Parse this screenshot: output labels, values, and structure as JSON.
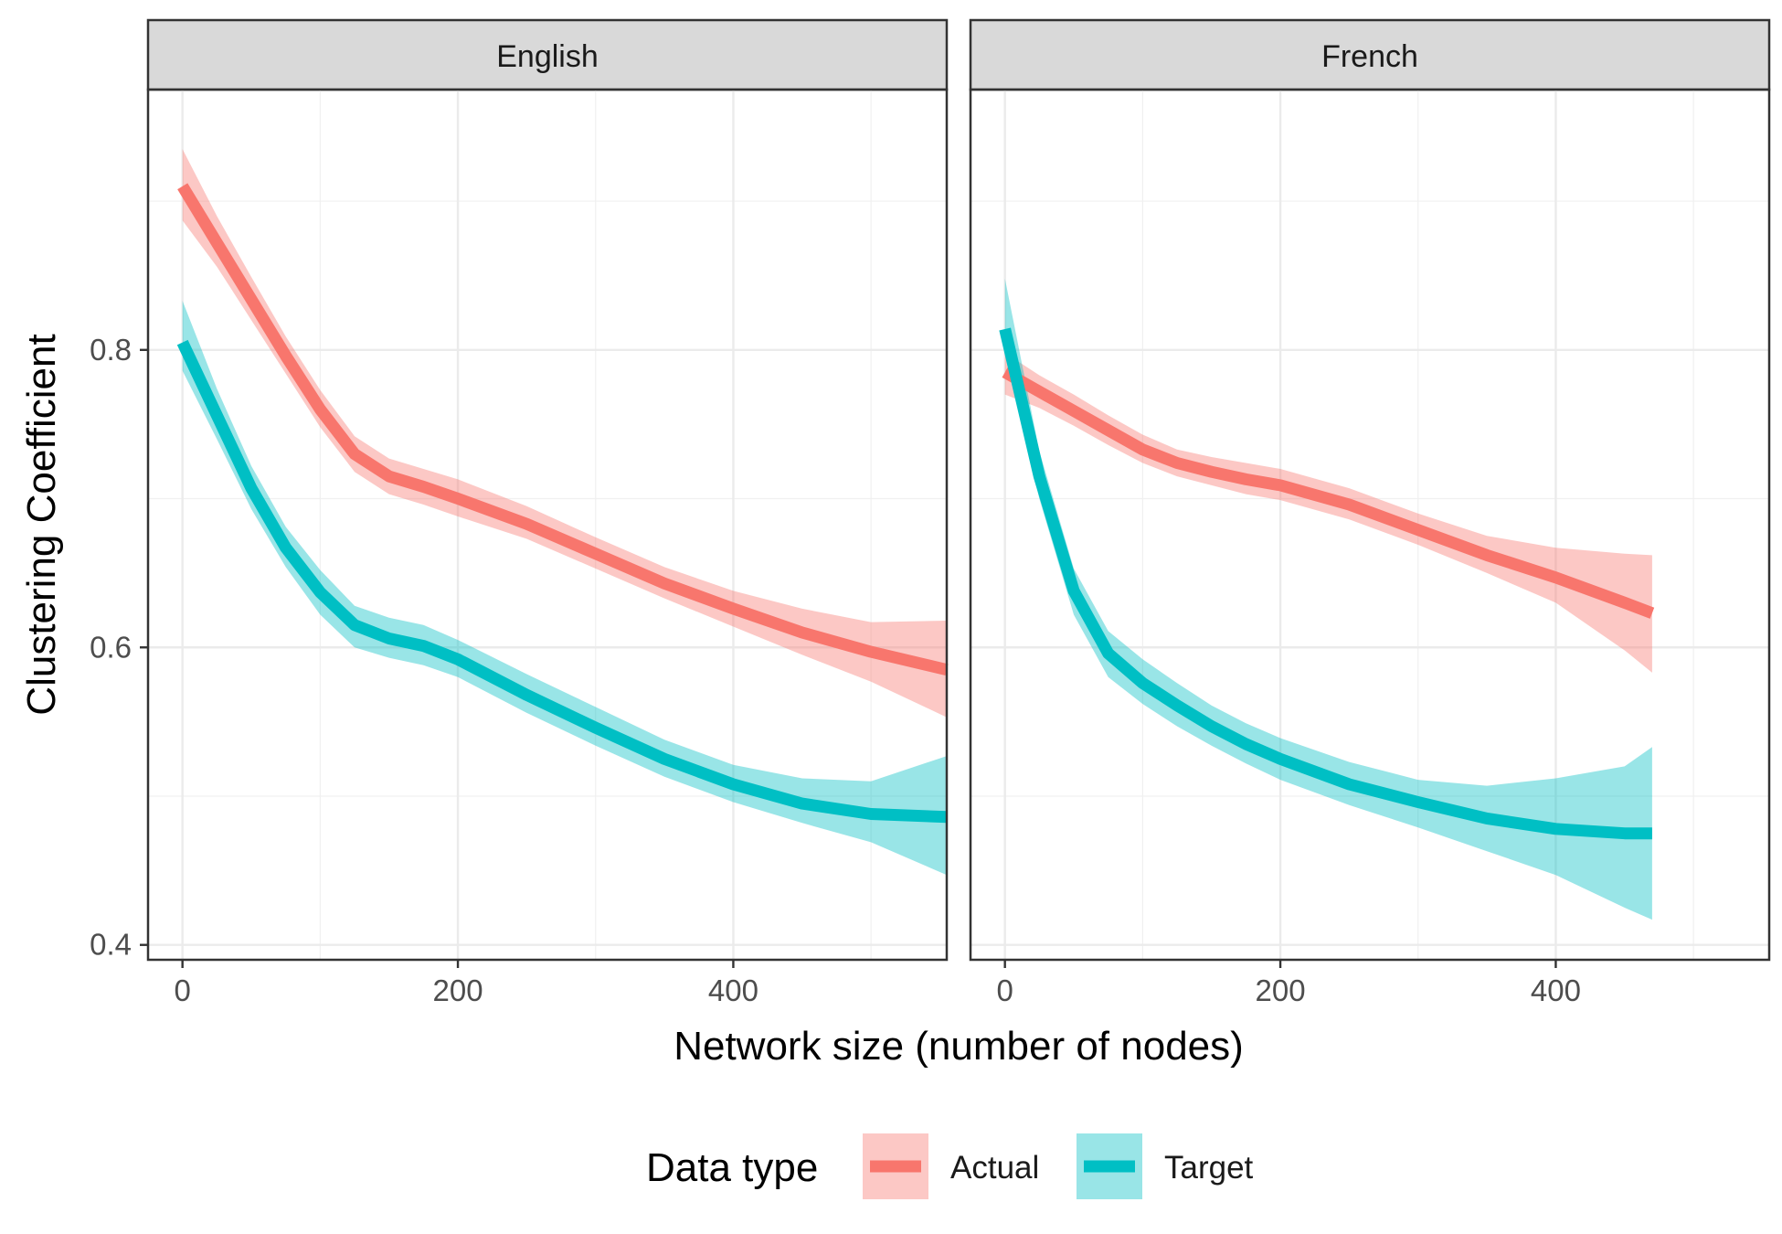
{
  "chart_data": {
    "type": "line",
    "xlabel": "Network size (number of nodes)",
    "ylabel": "Clustering Coefficient",
    "xlim": [
      -25,
      555
    ],
    "ylim": [
      0.39,
      0.975
    ],
    "x_ticks": [
      0,
      200,
      400
    ],
    "y_ticks": [
      0.4,
      0.6,
      0.8
    ],
    "grid": true,
    "legend": {
      "title": "Data type",
      "position": "bottom",
      "entries": [
        "Actual",
        "Target"
      ]
    },
    "colors": {
      "Actual": "#F8766D",
      "Target": "#00BFC4"
    },
    "panels": [
      {
        "title": "English",
        "series": [
          {
            "name": "Actual",
            "x": [
              0,
              25,
              50,
              75,
              100,
              125,
              150,
              175,
              200,
              250,
              300,
              350,
              400,
              450,
              500,
              555
            ],
            "y": [
              0.91,
              0.872,
              0.834,
              0.796,
              0.76,
              0.73,
              0.715,
              0.708,
              0.7,
              0.683,
              0.663,
              0.643,
              0.626,
              0.61,
              0.597,
              0.585
            ],
            "lower": [
              0.887,
              0.856,
              0.82,
              0.784,
              0.748,
              0.718,
              0.703,
              0.696,
              0.688,
              0.673,
              0.653,
              0.633,
              0.614,
              0.595,
              0.577,
              0.553
            ],
            "upper": [
              0.935,
              0.89,
              0.849,
              0.809,
              0.773,
              0.742,
              0.727,
              0.72,
              0.713,
              0.695,
              0.674,
              0.654,
              0.638,
              0.626,
              0.617,
              0.618
            ]
          },
          {
            "name": "Target",
            "x": [
              0,
              25,
              50,
              75,
              100,
              125,
              150,
              175,
              200,
              250,
              300,
              350,
              400,
              450,
              500,
              555
            ],
            "y": [
              0.805,
              0.756,
              0.707,
              0.667,
              0.637,
              0.615,
              0.606,
              0.601,
              0.592,
              0.568,
              0.546,
              0.525,
              0.508,
              0.495,
              0.488,
              0.486
            ],
            "lower": [
              0.786,
              0.74,
              0.693,
              0.654,
              0.622,
              0.6,
              0.593,
              0.588,
              0.58,
              0.556,
              0.534,
              0.513,
              0.496,
              0.482,
              0.469,
              0.447
            ],
            "upper": [
              0.833,
              0.774,
              0.722,
              0.681,
              0.652,
              0.628,
              0.62,
              0.615,
              0.605,
              0.582,
              0.56,
              0.538,
              0.521,
              0.512,
              0.51,
              0.527
            ]
          }
        ]
      },
      {
        "title": "French",
        "series": [
          {
            "name": "Actual",
            "x": [
              0,
              25,
              50,
              75,
              100,
              125,
              150,
              175,
              200,
              250,
              300,
              350,
              400,
              450,
              470
            ],
            "y": [
              0.785,
              0.772,
              0.759,
              0.746,
              0.733,
              0.724,
              0.718,
              0.713,
              0.709,
              0.696,
              0.679,
              0.662,
              0.647,
              0.63,
              0.623
            ],
            "lower": [
              0.77,
              0.761,
              0.749,
              0.736,
              0.724,
              0.715,
              0.709,
              0.703,
              0.699,
              0.686,
              0.669,
              0.65,
              0.63,
              0.598,
              0.583
            ],
            "upper": [
              0.798,
              0.783,
              0.77,
              0.756,
              0.743,
              0.733,
              0.728,
              0.724,
              0.72,
              0.707,
              0.69,
              0.675,
              0.667,
              0.663,
              0.662
            ]
          },
          {
            "name": "Target",
            "x": [
              0,
              25,
              50,
              75,
              100,
              125,
              150,
              175,
              200,
              250,
              300,
              350,
              400,
              450,
              470
            ],
            "y": [
              0.814,
              0.715,
              0.638,
              0.596,
              0.576,
              0.561,
              0.547,
              0.535,
              0.525,
              0.508,
              0.496,
              0.485,
              0.478,
              0.475,
              0.475
            ],
            "lower": [
              0.797,
              0.7,
              0.622,
              0.58,
              0.562,
              0.547,
              0.534,
              0.522,
              0.511,
              0.494,
              0.479,
              0.463,
              0.447,
              0.425,
              0.417
            ],
            "upper": [
              0.848,
              0.732,
              0.653,
              0.611,
              0.592,
              0.576,
              0.561,
              0.549,
              0.539,
              0.523,
              0.511,
              0.507,
              0.512,
              0.52,
              0.533
            ]
          }
        ]
      }
    ]
  }
}
